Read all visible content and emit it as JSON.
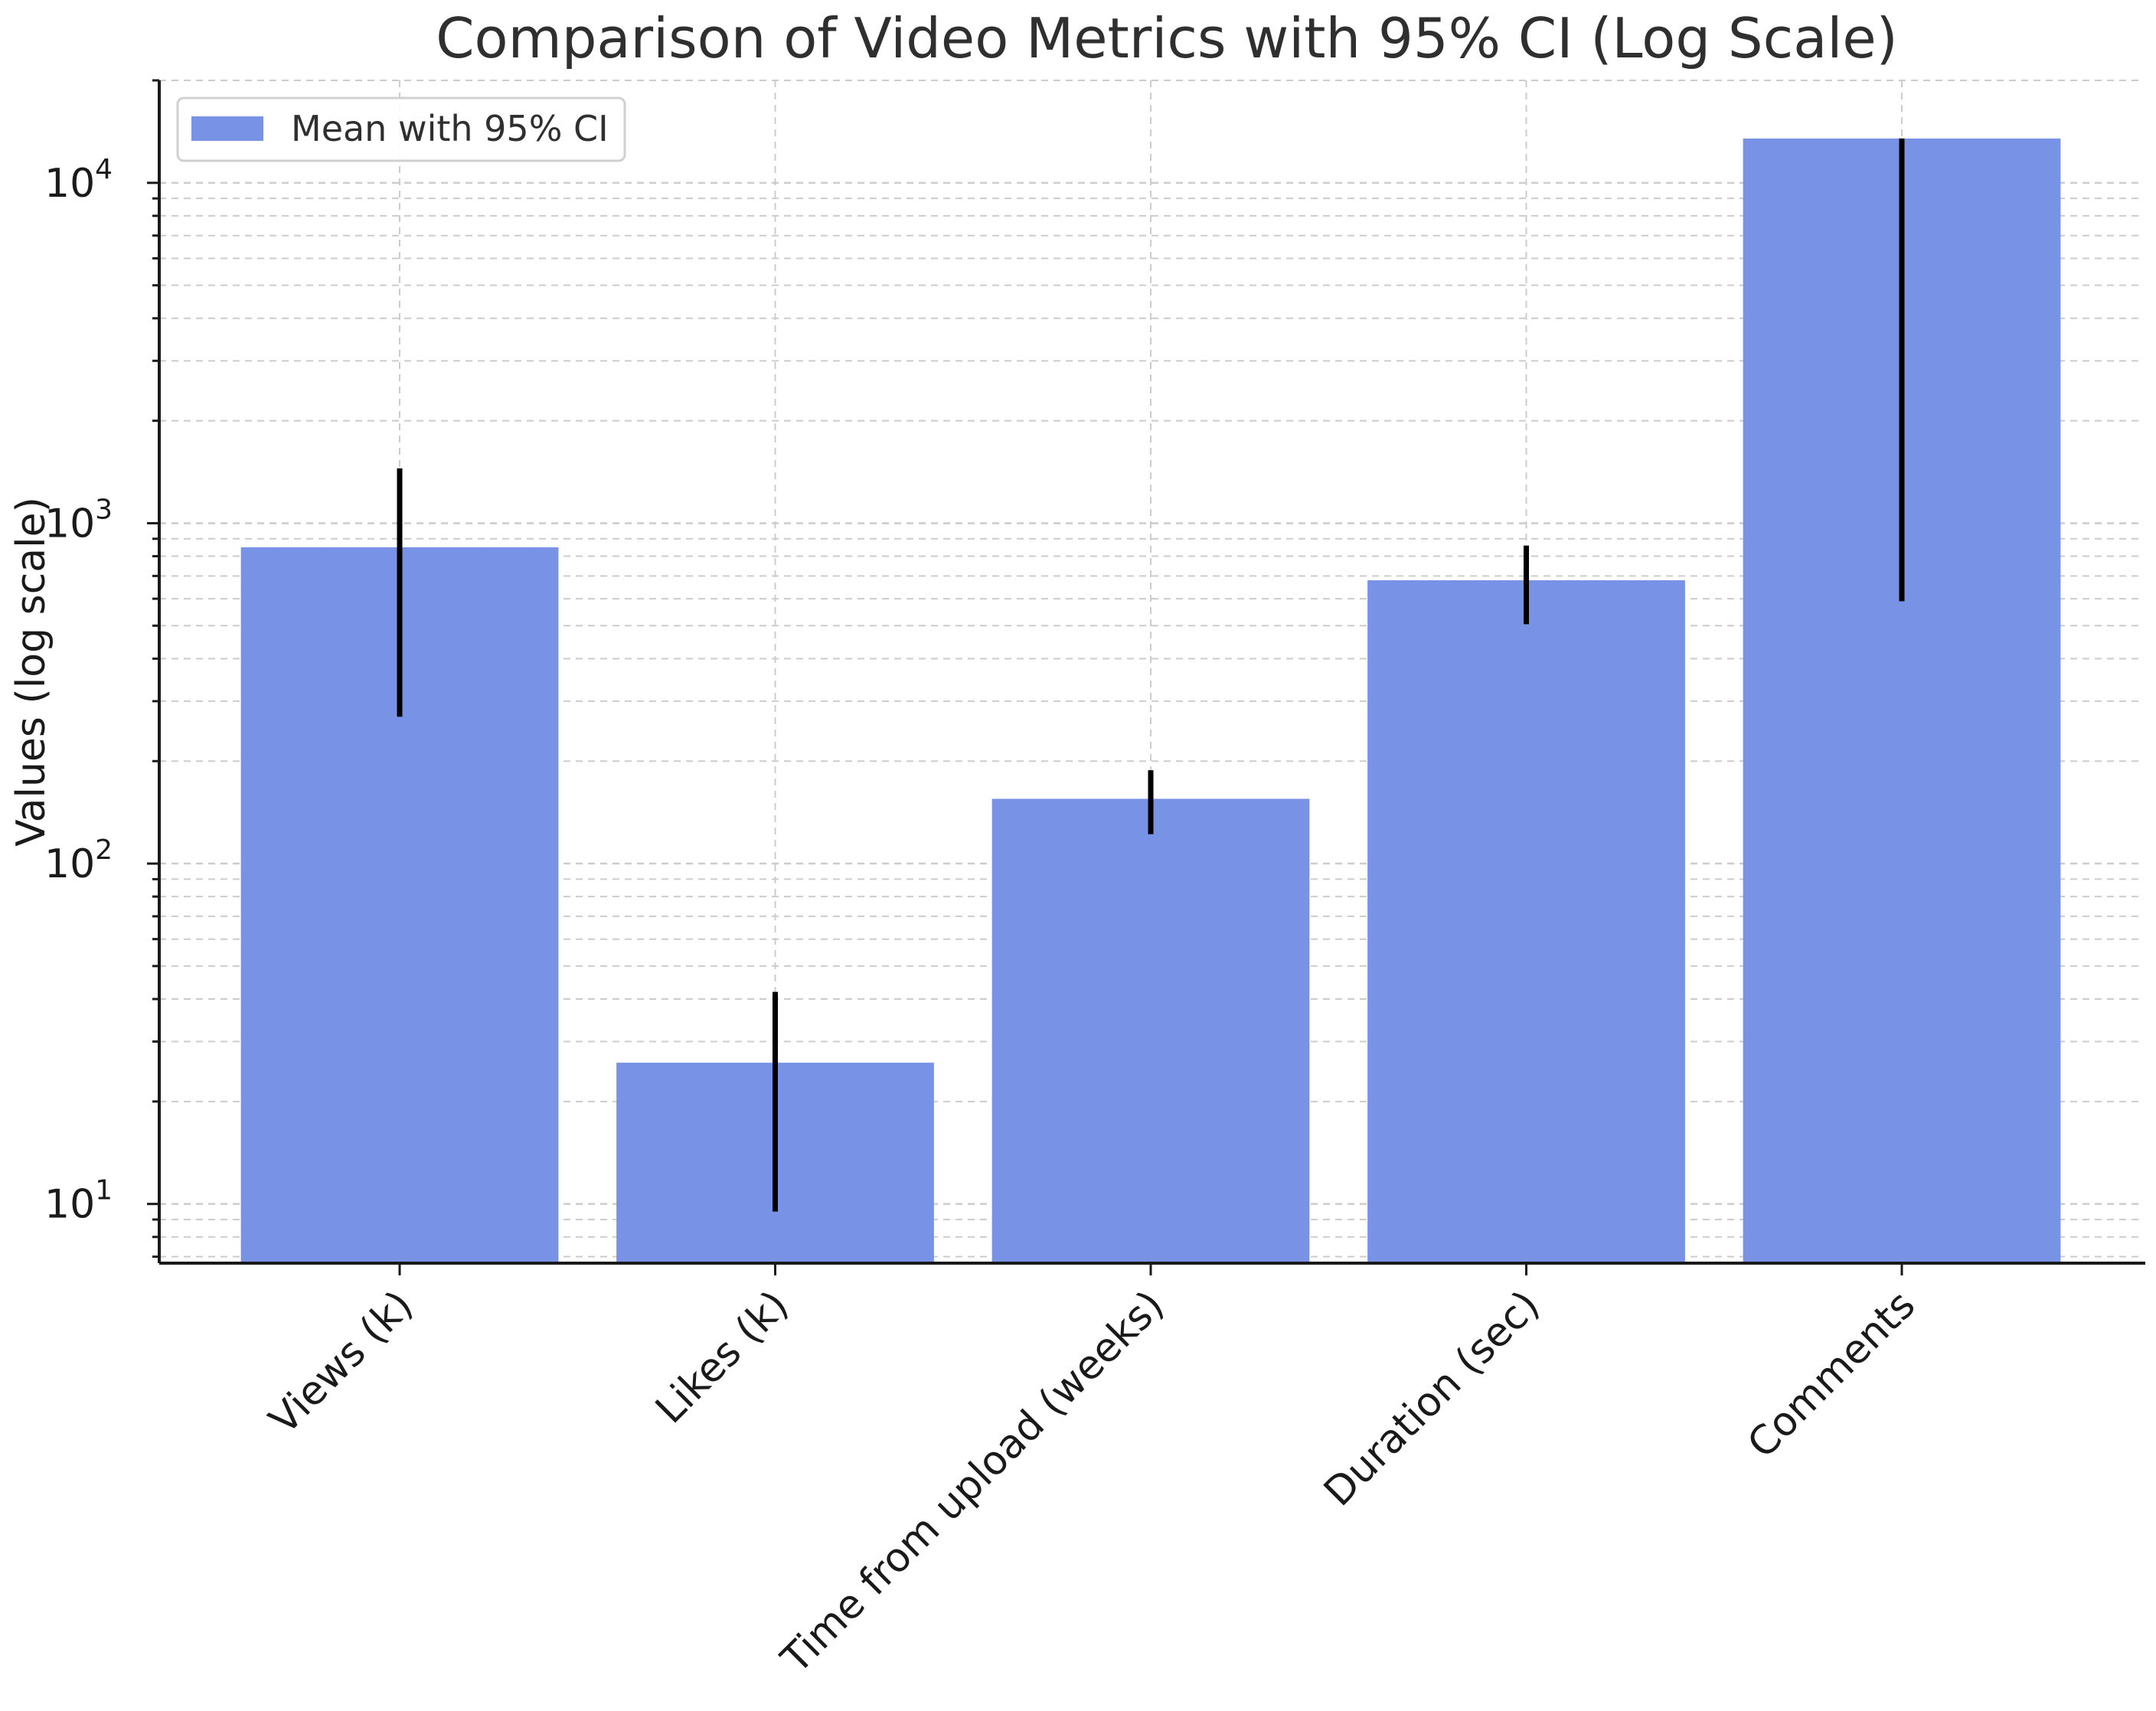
{
  "chart_data": {
    "type": "bar",
    "title": "Comparison of Video Metrics with 95% CI (Log Scale)",
    "xlabel": "",
    "ylabel": "Values (log scale)",
    "yscale": "log",
    "ylim": [
      6.7,
      20000
    ],
    "yticks": [
      {
        "base": "10",
        "exp": "1"
      },
      {
        "base": "10",
        "exp": "2"
      },
      {
        "base": "10",
        "exp": "3"
      },
      {
        "base": "10",
        "exp": "4"
      }
    ],
    "categories": [
      "Views (k)",
      "Likes (k)",
      "Time from upload (weeks)",
      "Duration (sec)",
      "Comments"
    ],
    "series": [
      {
        "name": "Mean with 95% CI",
        "values": [
          850,
          26,
          155,
          680,
          13500
        ],
        "ci_lower": [
          270,
          9.5,
          122,
          505,
          590
        ],
        "ci_upper": [
          1450,
          42,
          188,
          860,
          13500
        ]
      }
    ],
    "grid": true,
    "legend": {
      "position": "top-left",
      "label": "Mean with 95% CI"
    },
    "colors": {
      "bar": "#7892e6",
      "errorbar": "#000000",
      "grid": "#cccccc",
      "axis": "#1a1a1a"
    }
  }
}
